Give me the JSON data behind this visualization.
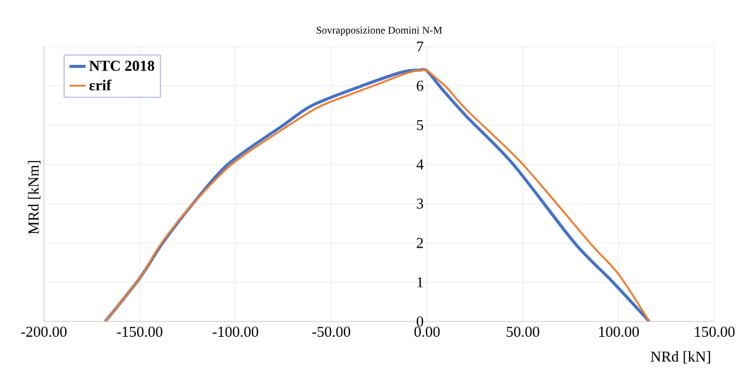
{
  "chart_data": {
    "type": "line",
    "title": "Sovrapposizione Domini N-M",
    "xlabel": "NRd [kN]",
    "ylabel": "MRd [kNm]",
    "xlim": [
      -200,
      150
    ],
    "ylim": [
      0,
      7
    ],
    "xticks": [
      {
        "value": -200,
        "label": "-200.00"
      },
      {
        "value": -150,
        "label": "-150.00"
      },
      {
        "value": -100,
        "label": "-100.00"
      },
      {
        "value": -50,
        "label": "-50.00"
      },
      {
        "value": 0,
        "label": "0.00"
      },
      {
        "value": 50,
        "label": "50.00"
      },
      {
        "value": 100,
        "label": "100.00"
      },
      {
        "value": 150,
        "label": "150.00"
      }
    ],
    "yticks": [
      0,
      1,
      2,
      3,
      4,
      5,
      6,
      7
    ],
    "grid": true,
    "legend": "top left",
    "series": [
      {
        "name": "NTC 2018",
        "color": "#4472c4",
        "x": [
          -168,
          -150,
          -138,
          -123,
          -104,
          -75,
          -60,
          -34,
          -13,
          -4,
          0,
          9,
          21,
          45,
          77,
          97,
          116
        ],
        "values": [
          0,
          1.1,
          2,
          2.95,
          4,
          5,
          5.5,
          6,
          6.35,
          6.4,
          6.38,
          5.85,
          5.2,
          4,
          2,
          1,
          0
        ]
      },
      {
        "name": "εrif",
        "color": "#ed7d31",
        "x": [
          -168,
          -150,
          -138.5,
          -123,
          -102,
          -72,
          -55,
          -28,
          -12,
          -4,
          0,
          10,
          21,
          50,
          85,
          100,
          116
        ],
        "values": [
          0,
          1.1,
          2,
          2.95,
          4,
          5,
          5.5,
          6,
          6.3,
          6.4,
          6.38,
          5.97,
          5.37,
          4,
          2,
          1.2,
          0
        ]
      }
    ]
  }
}
